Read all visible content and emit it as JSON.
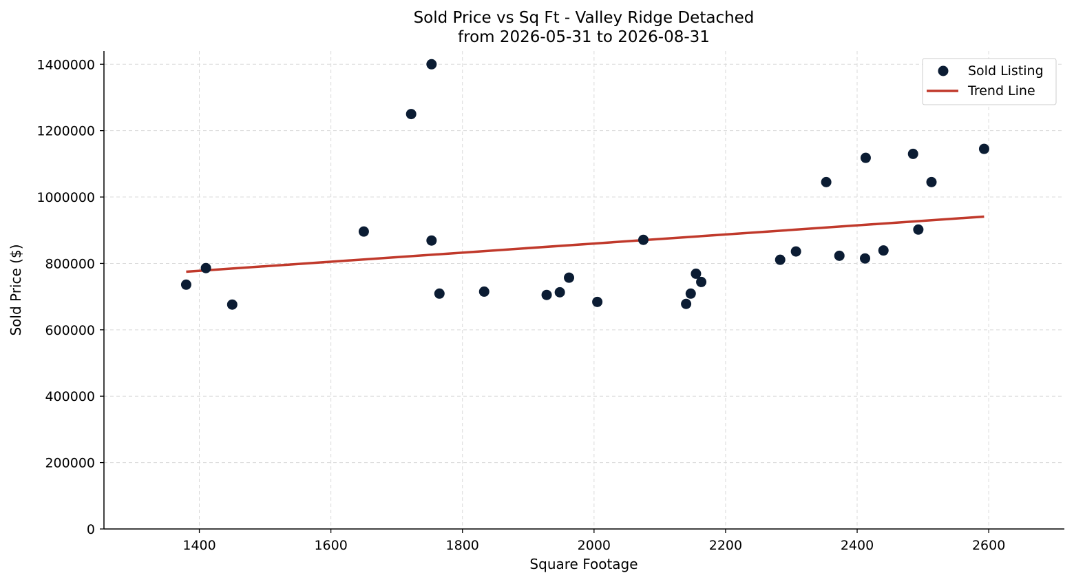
{
  "chart_data": {
    "type": "scatter",
    "title": "Sold Price vs Sq Ft - Valley Ridge Detached",
    "subtitle": "from 2026-05-31 to 2026-08-31",
    "xlabel": "Square Footage",
    "ylabel": "Sold Price ($)",
    "xlim": [
      1255,
      2715
    ],
    "ylim": [
      0,
      1440000
    ],
    "xticks": [
      1400,
      1600,
      1800,
      2000,
      2200,
      2400,
      2600
    ],
    "yticks": [
      0,
      200000,
      400000,
      600000,
      800000,
      1000000,
      1200000,
      1400000
    ],
    "grid": true,
    "legend_position": "top-right",
    "colors": {
      "points": "#0b1c33",
      "trend": "#c0392b"
    },
    "series": [
      {
        "name": "Sold Listing",
        "kind": "scatter",
        "points": [
          [
            1380,
            736000
          ],
          [
            1410,
            786000
          ],
          [
            1450,
            676000
          ],
          [
            1650,
            896000
          ],
          [
            1722,
            1250000
          ],
          [
            1753,
            1400000
          ],
          [
            1753,
            869000
          ],
          [
            1765,
            709000
          ],
          [
            1833,
            715000
          ],
          [
            1928,
            705000
          ],
          [
            1948,
            713000
          ],
          [
            1962,
            757000
          ],
          [
            2005,
            684000
          ],
          [
            2075,
            871000
          ],
          [
            2140,
            678000
          ],
          [
            2147,
            709000
          ],
          [
            2155,
            769000
          ],
          [
            2163,
            744000
          ],
          [
            2283,
            811000
          ],
          [
            2307,
            836000
          ],
          [
            2353,
            1045000
          ],
          [
            2373,
            823000
          ],
          [
            2412,
            815000
          ],
          [
            2413,
            1118000
          ],
          [
            2440,
            839000
          ],
          [
            2485,
            1130000
          ],
          [
            2493,
            902000
          ],
          [
            2513,
            1045000
          ],
          [
            2593,
            1145000
          ]
        ]
      },
      {
        "name": "Trend Line",
        "kind": "line",
        "points": [
          [
            1380,
            775000
          ],
          [
            2593,
            941000
          ]
        ]
      }
    ]
  }
}
